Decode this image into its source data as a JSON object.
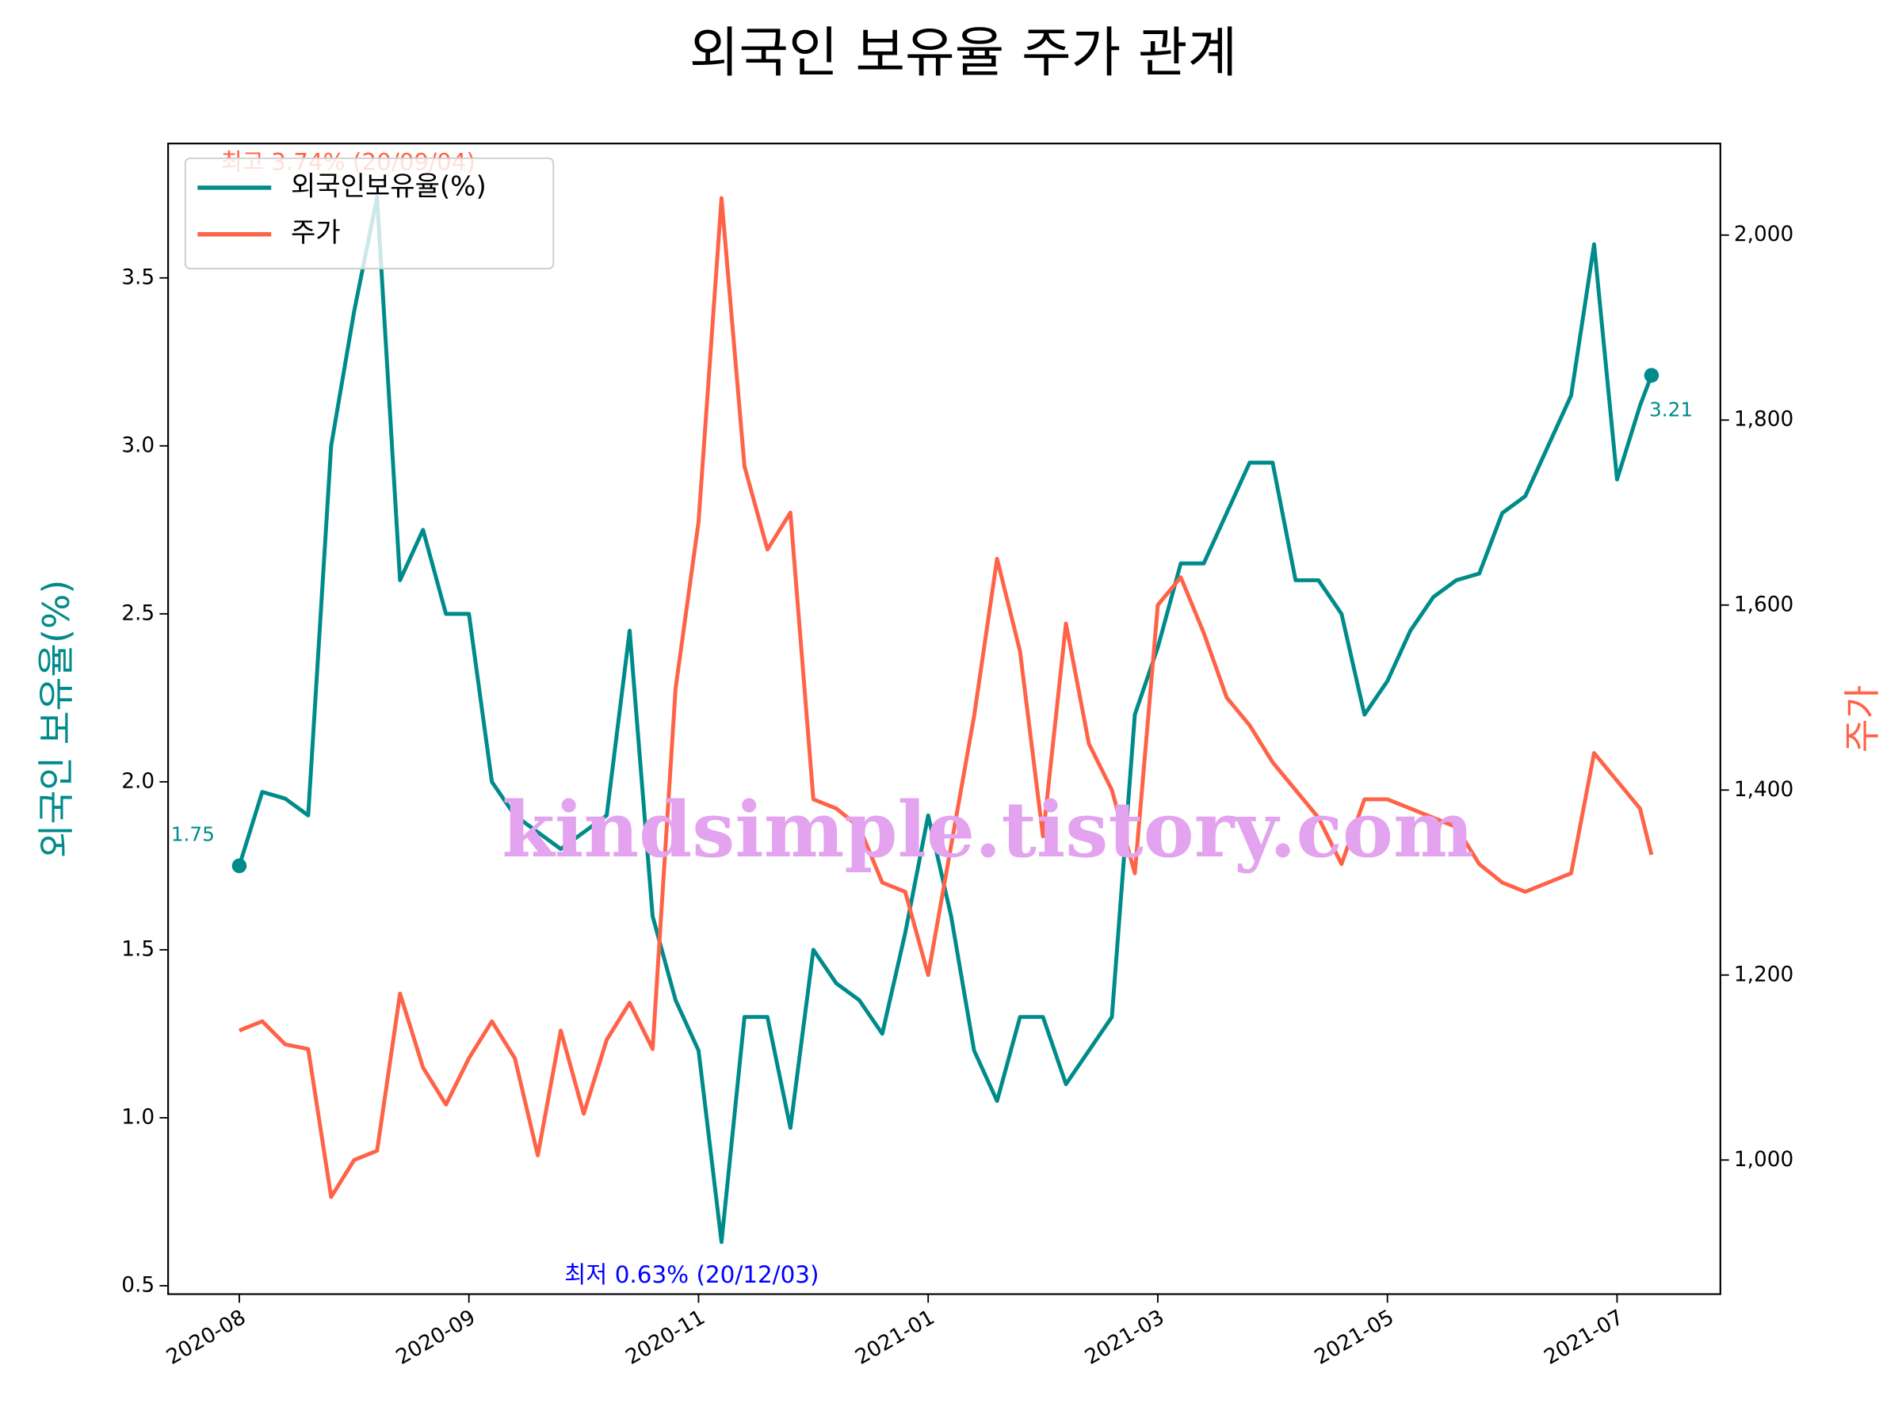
{
  "chart_data": {
    "type": "line",
    "title": "외국인 보유율 주가 관계",
    "ylabel": "외국인 보유율(%)",
    "y2label": "주가",
    "x": [
      0,
      0.1,
      0.2,
      0.3,
      0.4,
      0.5,
      0.6,
      0.7,
      0.8,
      0.9,
      1,
      1.1,
      1.2,
      1.3,
      1.4,
      1.5,
      1.6,
      1.7,
      1.8,
      1.9,
      2,
      2.1,
      2.2,
      2.3,
      2.4,
      2.5,
      2.6,
      2.7,
      2.8,
      2.9,
      3,
      3.1,
      3.2,
      3.3,
      3.4,
      3.5,
      3.6,
      3.7,
      3.8,
      3.9,
      4,
      4.1,
      4.2,
      4.3,
      4.4,
      4.5,
      4.6,
      4.7,
      4.8,
      4.9,
      5,
      5.1,
      5.2,
      5.3,
      5.4,
      5.5,
      5.6,
      5.7,
      5.8,
      5.9,
      6,
      6.1,
      6.15
    ],
    "xlim": [
      -0.31,
      6.45
    ],
    "xticks": [
      {
        "value": 0,
        "label": "2020-08"
      },
      {
        "value": 1,
        "label": "2020-09"
      },
      {
        "value": 2,
        "label": "2020-11"
      },
      {
        "value": 3,
        "label": "2021-01"
      },
      {
        "value": 4,
        "label": "2021-03"
      },
      {
        "value": 5,
        "label": "2021-05"
      },
      {
        "value": 6,
        "label": "2021-07"
      }
    ],
    "ylim": [
      0.475,
      3.9
    ],
    "yticks": [
      0.5,
      {
        "value": 1,
        "label": "1.0"
      },
      1.5,
      {
        "value": 2,
        "label": "2.0"
      },
      2.5,
      {
        "value": 3,
        "label": "3.0"
      },
      3.5
    ],
    "y2lim": [
      855,
      2099
    ],
    "y2ticks": [
      {
        "value": 1000,
        "label": "1,000"
      },
      {
        "value": 1200,
        "label": "1,200"
      },
      {
        "value": 1400,
        "label": "1,400"
      },
      {
        "value": 1600,
        "label": "1,600"
      },
      {
        "value": 1800,
        "label": "1,800"
      },
      {
        "value": 2000,
        "label": "2,000"
      }
    ],
    "series": [
      {
        "name": "외국인보유율(%)",
        "color": "#008b8b",
        "axis": "y",
        "values": [
          1.75,
          1.97,
          1.95,
          1.9,
          3.0,
          3.4,
          3.74,
          2.6,
          2.75,
          2.5,
          2.5,
          2.0,
          1.9,
          1.85,
          1.8,
          1.85,
          1.9,
          2.45,
          1.6,
          1.35,
          1.2,
          0.63,
          1.3,
          1.3,
          0.97,
          1.5,
          1.4,
          1.35,
          1.25,
          1.55,
          1.9,
          1.6,
          1.2,
          1.05,
          1.3,
          1.3,
          1.1,
          1.2,
          1.3,
          2.2,
          2.4,
          2.65,
          2.65,
          2.8,
          2.95,
          2.95,
          2.6,
          2.6,
          2.5,
          2.2,
          2.3,
          2.45,
          2.55,
          2.6,
          2.62,
          2.8,
          2.85,
          3.0,
          3.15,
          3.6,
          2.9,
          3.12,
          3.21
        ]
      },
      {
        "name": "주가",
        "color": "#ff6347",
        "axis": "y2",
        "values": [
          1140,
          1150,
          1125,
          1120,
          960,
          1000,
          1010,
          1180,
          1100,
          1060,
          1110,
          1150,
          1110,
          1005,
          1140,
          1050,
          1130,
          1170,
          1120,
          1510,
          1690,
          2040,
          1750,
          1660,
          1700,
          1390,
          1380,
          1360,
          1300,
          1290,
          1200,
          1340,
          1480,
          1650,
          1550,
          1350,
          1580,
          1450,
          1400,
          1310,
          1600,
          1630,
          1570,
          1500,
          1470,
          1430,
          1400,
          1370,
          1320,
          1390,
          1390,
          1380,
          1370,
          1360,
          1320,
          1300,
          1290,
          1300,
          1310,
          1440,
          1410,
          1380,
          1330
        ]
      }
    ],
    "legend": "upper left",
    "annotations": [
      "최고 3.74% (20/09/04)",
      "최저 0.63% (20/12/03)",
      "1.75",
      "3.21"
    ],
    "annotation_colors": [
      "#ff6347",
      "#0000ff",
      "#008b8b",
      "#008b8b"
    ],
    "watermark": "kindsimple.tistory.com"
  }
}
